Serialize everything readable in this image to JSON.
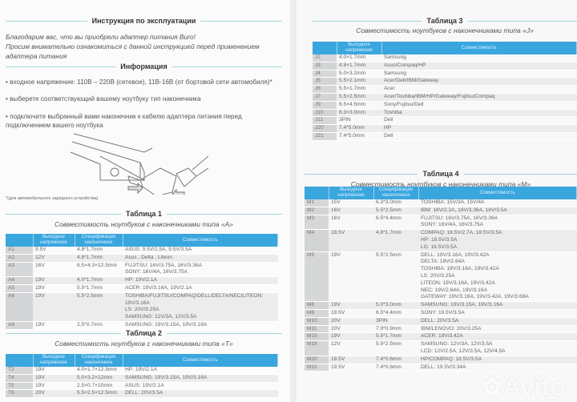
{
  "left": {
    "title": "Инструкция по эксплуатации",
    "intro": [
      "Благодарим вас, что вы приобрели адаптер питания Buro!",
      "Просим внимательно ознакомиться с данной инструкцией перед применением адаптера питания"
    ],
    "info_title": "Информация",
    "bullets": [
      "• входное напряжение: 110В – 220В (сетевое), 11В-16В (от бортовой сети автомобиля)*",
      "• выберете соответствующий вашему ноутбуку тип наконечника",
      "• подключите выбранный вами наконечник к кабелю адаптера питания перед подключением вашего ноутбука"
    ],
    "footnote": "*(для автомобильного зарядного устройства)"
  },
  "headers": {
    "voltage": "Выходное напряжение",
    "spec": "Спецификация наконечника",
    "compat": "Совместимость"
  },
  "table1": {
    "title": "Таблица 1",
    "subtitle": "Совместимость ноутбуков с наконечниками типа «А»",
    "rows": [
      [
        "A1",
        "9.5V",
        "4.8*1.7mm",
        [
          "ASUS: 9.5V/2.5A, 9.5V/3.5A"
        ]
      ],
      [
        "A2",
        "12V",
        "4.8*1.7mm",
        [
          "Asus , Delta , Liteon"
        ]
      ],
      [
        "A3",
        "16V",
        "6.5×4.3×12.5mm",
        [
          "FUJITSU: 16V/3.75A, 16V/3.36A",
          "SONY: 16V/4A, 16V/3.75A"
        ]
      ],
      [
        "A4",
        "19V",
        "4.0*1.7mm",
        [
          "HP: 19V/2.1A"
        ]
      ],
      [
        "A5",
        "19V",
        "5.5*1.7mm",
        [
          "ACER: 19V/3.16A, 19V/2.1A"
        ]
      ],
      [
        "A6",
        "19V",
        "5.5*2.5mm",
        [
          "TOSHIBA/FUJITSU/COMPAQ/DELL/DELTA/NEC/LITEON: 19V/3.16A",
          "LS: 20V/3.25A",
          "SAMSUNG: 12V/3A, 12V/3.5A"
        ]
      ],
      [
        "A8",
        "19V",
        "2.5*0.7mm",
        [
          "SAMSUNG: 19V/3.15A, 19V/3.16A"
        ]
      ]
    ]
  },
  "table2": {
    "title": "Таблица 2",
    "subtitle": "Совместимость ноутбуков с наконечниками типа «Т»",
    "rows": [
      [
        "T2",
        "19V",
        "4.0×1.7×12.5mm",
        [
          "HP: 19V/2.1A"
        ]
      ],
      [
        "T4",
        "19V",
        "5.0×3.2×12mm",
        [
          "SAMSUNG: 19V/3.15A, 19V/3.16A"
        ]
      ],
      [
        "T5",
        "19V",
        "2.5×0.7×10mm",
        [
          "ASUS: 19V/2.1A"
        ]
      ],
      [
        "T6",
        "20V",
        "5.5×2.5×12.5mm",
        [
          "DELL: 20V/3.5A"
        ]
      ]
    ]
  },
  "table3": {
    "title": "Таблица 3",
    "subtitle": "Совместимость ноутбуков с наконечниками типа «J»",
    "rows": [
      [
        "J2",
        "4.0×1.7mm",
        [
          "Samsung"
        ]
      ],
      [
        "J3",
        "4.8×1.7mm",
        [
          "Asus/Compaq/HP"
        ]
      ],
      [
        "J4",
        "5.0×3.2mm",
        [
          "Samsung"
        ]
      ],
      [
        "J5",
        "5.5×2.1mm",
        [
          "Acer/Dell/IBM/Gateway"
        ]
      ],
      [
        "J6",
        "5.5×1.7mm",
        [
          "Acer"
        ]
      ],
      [
        "J7",
        "5.5×2.5mm",
        [
          "Acer/Toshiba/IBM/HP/Gateway/Fujitsu/Compaq"
        ]
      ],
      [
        "J9",
        "6.5×4.5mm",
        [
          "Sony/Fujitsu/Dell"
        ]
      ],
      [
        "J10",
        "6.3×3.0mm",
        [
          "Toshiba"
        ]
      ],
      [
        "J11",
        "3PIN",
        [
          "Dell"
        ]
      ],
      [
        "J20",
        "7.4*5.0mm",
        [
          "HP"
        ]
      ],
      [
        "J21",
        "7.4*5.0mm",
        [
          "Dell"
        ]
      ]
    ]
  },
  "table4": {
    "title": "Таблица 4",
    "subtitle": "Совместимость ноутбуков с наконечниками типа «М»",
    "rows": [
      [
        "M1",
        "15V",
        "6.3*3.0mm",
        [
          "TOSHIBA: 15V/3A, 15V/4A"
        ]
      ],
      [
        "M2",
        "16V",
        "5.5*2.5mm",
        [
          "IBM: 16V/2.2A, 16V/3.36A, 16V/3.5A"
        ]
      ],
      [
        "M3",
        "16V",
        "6.5*4.4mm",
        [
          "FUJITSU: 16V/3.75A, 16V/3.36A",
          "SONY: 16V/4A, 16V/3.75A"
        ]
      ],
      [
        "M4",
        "18.5V",
        "4.8*1.7mm",
        [
          "COMPAQ: 18.5V/2.7A, 18.5V/3.5A",
          "HP: 18.5V/3.5A",
          "LG: 18.5V/3.5A"
        ]
      ],
      [
        "M5",
        "19V",
        "5.5*2.5mm",
        [
          "DELL: 19V/3.16A, 19V/3.42A",
          "DELTA: 19V/2.64A",
          "TOSHIBA: 19V/3.16A, 19V/3.42A",
          "LS: 20V/3.25A",
          "LITEON: 19V/3.16A, 19V/3.42A",
          "NEC: 19V/2.64A, 19V/3.16A",
          "GATEWAY: 19V/3.16A, 19V/3.42A, 19V/3.68A"
        ]
      ],
      [
        "M6",
        "19V",
        "5.0*3.0mm",
        [
          "SAMSUNG: 19V/3.15A, 19V/3.16A"
        ]
      ],
      [
        "M8",
        "19.5V",
        "6.5*4.4mm",
        [
          "SONY: 19.5V/3.5A"
        ]
      ],
      [
        "M10",
        "20V",
        "3PIN",
        [
          "DELL: 20V/3.5A"
        ]
      ],
      [
        "M11",
        "20V",
        "7.9*0.9mm",
        [
          "IBM/LENOVO: 20V/3.25A"
        ]
      ],
      [
        "M15",
        "19V",
        "5.5*1.7mm",
        [
          "ACER: 19V/3.42A"
        ]
      ],
      [
        "M18",
        "12V",
        "5.5*2.5mm",
        [
          "SAMSUNG: 12V/3A, 12V/3.5A",
          "LCD: 12V/2.5A, 12V/3.5A, 12V/4.5A"
        ]
      ],
      [
        "M20",
        "18.5V",
        "7.4*0.6mm",
        [
          "HP/COMPAQ: 18.5V/3.5A"
        ]
      ],
      [
        "M21",
        "19.5V",
        "7.4*0.6mm",
        [
          "DELL: 19.5V/3.34A"
        ]
      ]
    ]
  },
  "watermark": "Avito",
  "colors": {
    "header": "#3aa6de",
    "rule": "#9fd3dc"
  }
}
